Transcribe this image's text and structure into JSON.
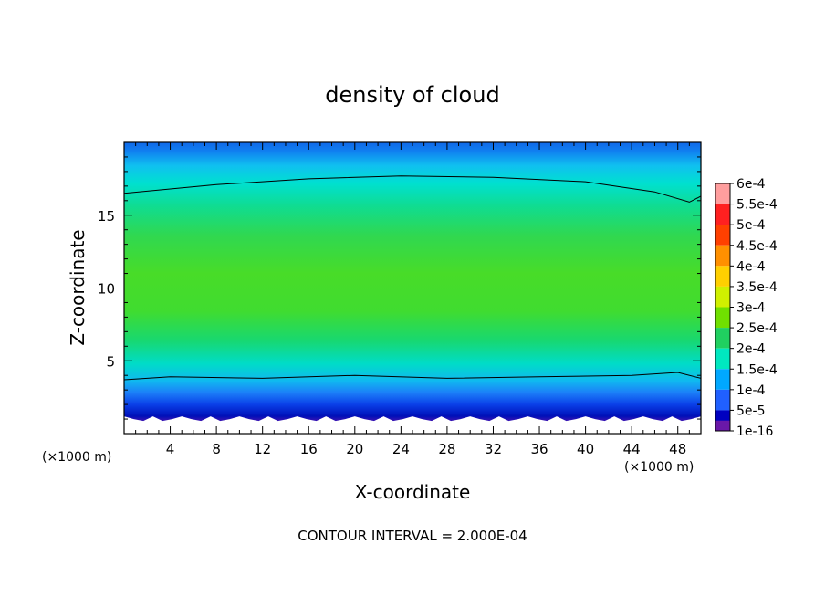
{
  "chart_data": {
    "type": "heatmap",
    "title": "density of cloud",
    "xlabel": "X-coordinate",
    "ylabel": "Z-coordinate",
    "x_unit": "(×1000 m)",
    "x_ticks": [
      4,
      8,
      12,
      16,
      20,
      24,
      28,
      32,
      36,
      40,
      44,
      48
    ],
    "y_ticks": [
      5,
      10,
      15
    ],
    "xlim": [
      0,
      50
    ],
    "ylim": [
      0,
      20
    ],
    "colorbar_labels": [
      "6e-4",
      "5.5e-4",
      "5e-4",
      "4.5e-4",
      "4e-4",
      "3.5e-4",
      "3e-4",
      "2.5e-4",
      "2e-4",
      "1.5e-4",
      "1e-4",
      "5e-5",
      "1e-16"
    ],
    "colorbar_colors": [
      "#ff9e9e",
      "#ff2020",
      "#ff4000",
      "#ff9000",
      "#ffd000",
      "#d0f000",
      "#70e000",
      "#20d060",
      "#00e8c0",
      "#00a8ff",
      "#2060ff",
      "#0000c0",
      "#6a18a8"
    ],
    "contour_interval": "CONTOUR INTERVAL = 2.000E-04",
    "profile_z": [
      0.8,
      1.5,
      2.5,
      3.5,
      4.5,
      6,
      8,
      10,
      12,
      14,
      16,
      17.5,
      18.5,
      19.5
    ],
    "profile_density": [
      1e-16,
      5e-05,
      0.0001,
      0.00015,
      0.0002,
      0.00025,
      0.0003,
      0.00032,
      0.0003,
      0.00026,
      0.00022,
      0.00019,
      0.00015,
      0.00012
    ],
    "contour_2e4_upper_z": [
      [
        0,
        16.5
      ],
      [
        8,
        17.1
      ],
      [
        16,
        17.5
      ],
      [
        24,
        17.7
      ],
      [
        32,
        17.6
      ],
      [
        40,
        17.3
      ],
      [
        46,
        16.6
      ],
      [
        49,
        15.9
      ],
      [
        50,
        16.3
      ]
    ],
    "contour_2e4_lower_z": [
      [
        0,
        3.7
      ],
      [
        4,
        3.9
      ],
      [
        12,
        3.8
      ],
      [
        20,
        4.0
      ],
      [
        28,
        3.8
      ],
      [
        36,
        3.9
      ],
      [
        44,
        4.0
      ],
      [
        48,
        4.2
      ],
      [
        50,
        3.8
      ]
    ],
    "cloud_base_z": 1.0
  }
}
